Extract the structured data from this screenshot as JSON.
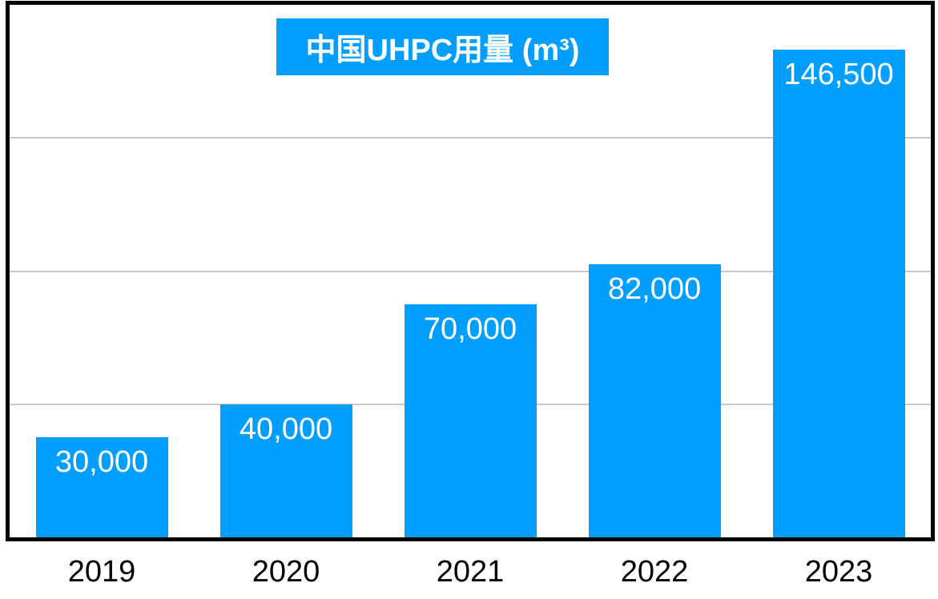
{
  "chart_data": {
    "type": "bar",
    "title": "中国UHPC用量 (m³)",
    "categories": [
      "2019",
      "2020",
      "2021",
      "2022",
      "2023"
    ],
    "values": [
      30000,
      40000,
      70000,
      82000,
      146500
    ],
    "value_labels": [
      "30,000",
      "40,000",
      "70,000",
      "82,000",
      "146,500"
    ],
    "xlabel": "",
    "ylabel": "",
    "ylim": [
      0,
      160000
    ],
    "gridline_values": [
      40000,
      80000,
      120000
    ],
    "grid": "horizontal",
    "legend_position": "none",
    "value_label_position": "inside-top",
    "colors": {
      "bar": "#009fff",
      "value_label": "#ffffff",
      "title_background": "#009fff",
      "title_text": "#ffffff",
      "axis_frame": "#000000",
      "gridline": "#c8c8c8",
      "category_label": "#000000",
      "background": "#ffffff"
    }
  }
}
